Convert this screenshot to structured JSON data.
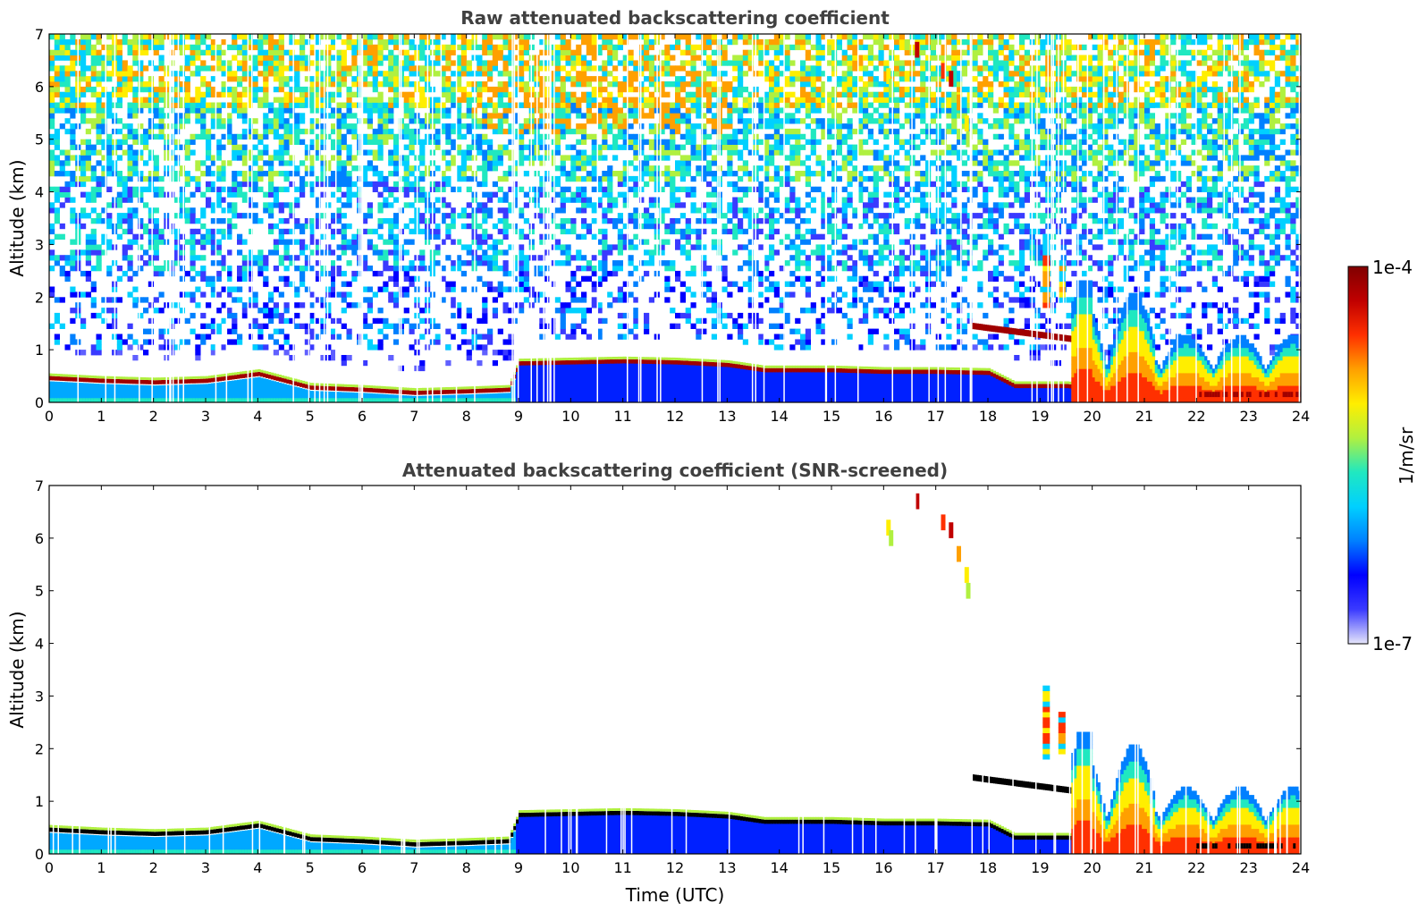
{
  "chart_data": [
    {
      "type": "heatmap",
      "title": "Raw attenuated backscattering coefficient",
      "xlabel": "",
      "ylabel": "Altitude (km)",
      "xlim": [
        0,
        24
      ],
      "ylim": [
        0,
        7
      ],
      "x_ticks": [
        "0",
        "1",
        "2",
        "3",
        "4",
        "5",
        "6",
        "7",
        "8",
        "9",
        "10",
        "11",
        "12",
        "13",
        "14",
        "15",
        "16",
        "17",
        "18",
        "19",
        "20",
        "21",
        "22",
        "23",
        "24"
      ],
      "y_ticks": [
        "0",
        "1",
        "2",
        "3",
        "4",
        "5",
        "6",
        "7"
      ],
      "screened": false,
      "layer_top_km": [
        [
          0,
          0.5
        ],
        [
          1,
          0.45
        ],
        [
          2,
          0.42
        ],
        [
          3,
          0.45
        ],
        [
          4,
          0.58
        ],
        [
          5,
          0.32
        ],
        [
          6,
          0.28
        ],
        [
          7,
          0.22
        ],
        [
          8,
          0.25
        ],
        [
          8.8,
          0.28
        ],
        [
          9,
          0.78
        ],
        [
          10,
          0.8
        ],
        [
          11,
          0.82
        ],
        [
          12,
          0.8
        ],
        [
          13,
          0.75
        ],
        [
          13.7,
          0.65
        ],
        [
          14,
          0.65
        ],
        [
          15,
          0.65
        ],
        [
          16,
          0.62
        ],
        [
          17,
          0.62
        ],
        [
          18,
          0.6
        ],
        [
          18.5,
          0.35
        ],
        [
          19.5,
          0.35
        ],
        [
          20,
          0.3
        ],
        [
          21,
          0.3
        ],
        [
          22,
          0.25
        ],
        [
          23,
          0.25
        ],
        [
          24,
          0.25
        ]
      ],
      "features": [
        {
          "name": "elevated aerosol layer",
          "x": [
            17.7,
            19.6
          ],
          "y_km": [
            1.45,
            1.2
          ]
        },
        {
          "name": "cirrus streaks",
          "x": [
            16.6,
            17.7
          ],
          "y_km": [
            6.7,
            4.9
          ]
        },
        {
          "name": "precipitation / convective signal",
          "x": [
            19.6,
            24
          ],
          "y_km": [
            0,
            2.4
          ]
        }
      ]
    },
    {
      "type": "heatmap",
      "title": "Attenuated backscattering coefficient (SNR-screened)",
      "xlabel": "Time (UTC)",
      "ylabel": "Altitude (km)",
      "xlim": [
        0,
        24
      ],
      "ylim": [
        0,
        7
      ],
      "x_ticks": [
        "0",
        "1",
        "2",
        "3",
        "4",
        "5",
        "6",
        "7",
        "8",
        "9",
        "10",
        "11",
        "12",
        "13",
        "14",
        "15",
        "16",
        "17",
        "18",
        "19",
        "20",
        "21",
        "22",
        "23",
        "24"
      ],
      "y_ticks": [
        "0",
        "1",
        "2",
        "3",
        "4",
        "5",
        "6",
        "7"
      ],
      "screened": true
    }
  ],
  "colorbar": {
    "max_label": "1e-4",
    "min_label": "1e-7",
    "unit_label": "1/m/sr",
    "scale": "log",
    "range": [
      1e-07,
      0.0001
    ],
    "colors": [
      "#e6e6fa",
      "#3a3aff",
      "#0000ff",
      "#0080ff",
      "#00d0ff",
      "#20e8c0",
      "#b0f040",
      "#ffee00",
      "#ffa000",
      "#ff3000",
      "#c00000",
      "#800000"
    ]
  }
}
